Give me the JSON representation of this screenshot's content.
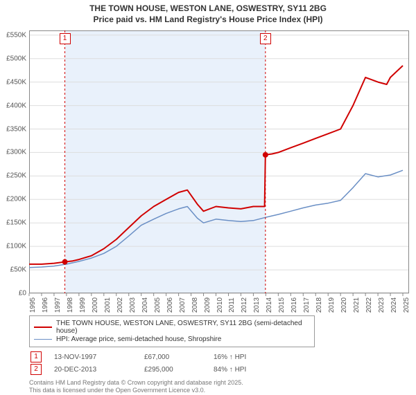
{
  "title_line1": "THE TOWN HOUSE, WESTON LANE, OSWESTRY, SY11 2BG",
  "title_line2": "Price paid vs. HM Land Registry's House Price Index (HPI)",
  "chart": {
    "type": "line",
    "background_color": "#ffffff",
    "shaded_band_color": "#e9f1fb",
    "gridline_color": "#dddddd",
    "border_color": "#888888",
    "x": {
      "min": 1995,
      "max": 2025.5,
      "ticks": [
        1995,
        1996,
        1997,
        1998,
        1999,
        2000,
        2001,
        2002,
        2003,
        2004,
        2005,
        2006,
        2007,
        2008,
        2009,
        2010,
        2011,
        2012,
        2013,
        2014,
        2015,
        2016,
        2017,
        2018,
        2019,
        2020,
        2021,
        2022,
        2023,
        2024,
        2025
      ],
      "tick_labels": [
        "1995",
        "1996",
        "1997",
        "1998",
        "1999",
        "2000",
        "2001",
        "2002",
        "2003",
        "2004",
        "2005",
        "2006",
        "2007",
        "2008",
        "2009",
        "2010",
        "2011",
        "2012",
        "2013",
        "2014",
        "2015",
        "2016",
        "2017",
        "2018",
        "2019",
        "2020",
        "2021",
        "2022",
        "2023",
        "2024",
        "2025"
      ],
      "label_fontsize": 10,
      "label_rotation_deg": -90
    },
    "y": {
      "min": 0,
      "max": 560000,
      "ticks": [
        0,
        50000,
        100000,
        150000,
        200000,
        250000,
        300000,
        350000,
        400000,
        450000,
        500000,
        550000
      ],
      "tick_labels": [
        "£0",
        "£50K",
        "£100K",
        "£150K",
        "£200K",
        "£250K",
        "£300K",
        "£350K",
        "£400K",
        "£450K",
        "£500K",
        "£550K"
      ],
      "label_fontsize": 10
    },
    "shaded_band_xrange": [
      1997.9,
      2013.97
    ],
    "series": [
      {
        "name": "price_paid",
        "color": "#d00000",
        "line_width": 2,
        "x": [
          1995,
          1996,
          1997,
          1997.9,
          1998.5,
          1999,
          2000,
          2001,
          2002,
          2003,
          2004,
          2005,
          2006,
          2007,
          2007.7,
          2008.5,
          2009,
          2010,
          2011,
          2012,
          2013,
          2013.9,
          2013.97,
          2014.5,
          2015,
          2016,
          2017,
          2018,
          2019,
          2020,
          2021,
          2022,
          2023,
          2023.7,
          2024,
          2025
        ],
        "y": [
          62000,
          62000,
          64000,
          67000,
          69000,
          72000,
          80000,
          95000,
          115000,
          140000,
          165000,
          185000,
          200000,
          215000,
          220000,
          190000,
          175000,
          185000,
          182000,
          180000,
          185000,
          185000,
          295000,
          297000,
          300000,
          310000,
          320000,
          330000,
          340000,
          350000,
          400000,
          460000,
          450000,
          445000,
          460000,
          485000
        ]
      },
      {
        "name": "hpi",
        "color": "#6a8fc5",
        "line_width": 1.5,
        "x": [
          1995,
          1996,
          1997,
          1998,
          1999,
          2000,
          2001,
          2002,
          2003,
          2004,
          2005,
          2006,
          2007,
          2007.7,
          2008.5,
          2009,
          2010,
          2011,
          2012,
          2013,
          2014,
          2015,
          2016,
          2017,
          2018,
          2019,
          2020,
          2021,
          2022,
          2023,
          2024,
          2025
        ],
        "y": [
          55000,
          56000,
          58000,
          62000,
          68000,
          75000,
          85000,
          100000,
          122000,
          145000,
          158000,
          170000,
          180000,
          185000,
          160000,
          150000,
          158000,
          155000,
          153000,
          155000,
          162000,
          168000,
          175000,
          182000,
          188000,
          192000,
          198000,
          225000,
          255000,
          248000,
          252000,
          262000
        ]
      }
    ],
    "sale_markers": [
      {
        "label": "1",
        "x": 1997.87,
        "y": 67000,
        "dot_color": "#d00000"
      },
      {
        "label": "2",
        "x": 2013.97,
        "y": 295000,
        "dot_color": "#d00000"
      }
    ],
    "sale_line_color": "#d00000",
    "sale_line_dash": "3,3"
  },
  "legend": {
    "series1": "THE TOWN HOUSE, WESTON LANE, OSWESTRY, SY11 2BG (semi-detached house)",
    "series2": "HPI: Average price, semi-detached house, Shropshire"
  },
  "sales": [
    {
      "idx": "1",
      "date": "13-NOV-1997",
      "price": "£67,000",
      "delta": "16% ↑ HPI"
    },
    {
      "idx": "2",
      "date": "20-DEC-2013",
      "price": "£295,000",
      "delta": "84% ↑ HPI"
    }
  ],
  "footer_line1": "Contains HM Land Registry data © Crown copyright and database right 2025.",
  "footer_line2": "This data is licensed under the Open Government Licence v3.0."
}
